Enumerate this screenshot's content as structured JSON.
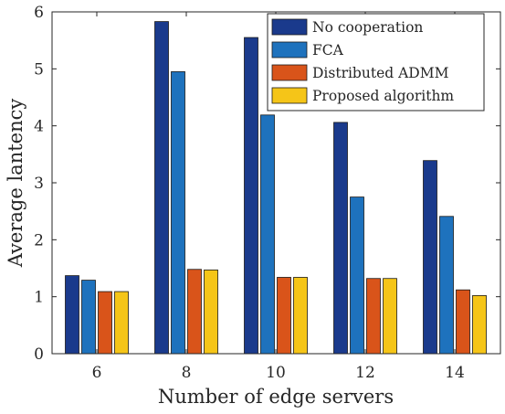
{
  "chart_data": {
    "type": "bar",
    "xlabel": "Number of edge servers",
    "ylabel": "Average lantency",
    "categories": [
      "6",
      "8",
      "10",
      "12",
      "14"
    ],
    "ylim": [
      0,
      6
    ],
    "yticks": [
      "0",
      "1",
      "2",
      "3",
      "4",
      "5",
      "6"
    ],
    "grid": false,
    "legend_position": "top-right",
    "series": [
      {
        "name": "No cooperation",
        "color": "#1a3a8c",
        "values": [
          1.37,
          5.83,
          5.55,
          4.06,
          3.39
        ]
      },
      {
        "name": "FCA",
        "color": "#1e72bd",
        "values": [
          1.29,
          4.95,
          4.19,
          2.75,
          2.41
        ]
      },
      {
        "name": "Distributed ADMM",
        "color": "#d9541a",
        "values": [
          1.09,
          1.48,
          1.34,
          1.32,
          1.12
        ]
      },
      {
        "name": "Proposed algorithm",
        "color": "#f5c518",
        "values": [
          1.09,
          1.47,
          1.34,
          1.32,
          1.02
        ]
      }
    ]
  }
}
